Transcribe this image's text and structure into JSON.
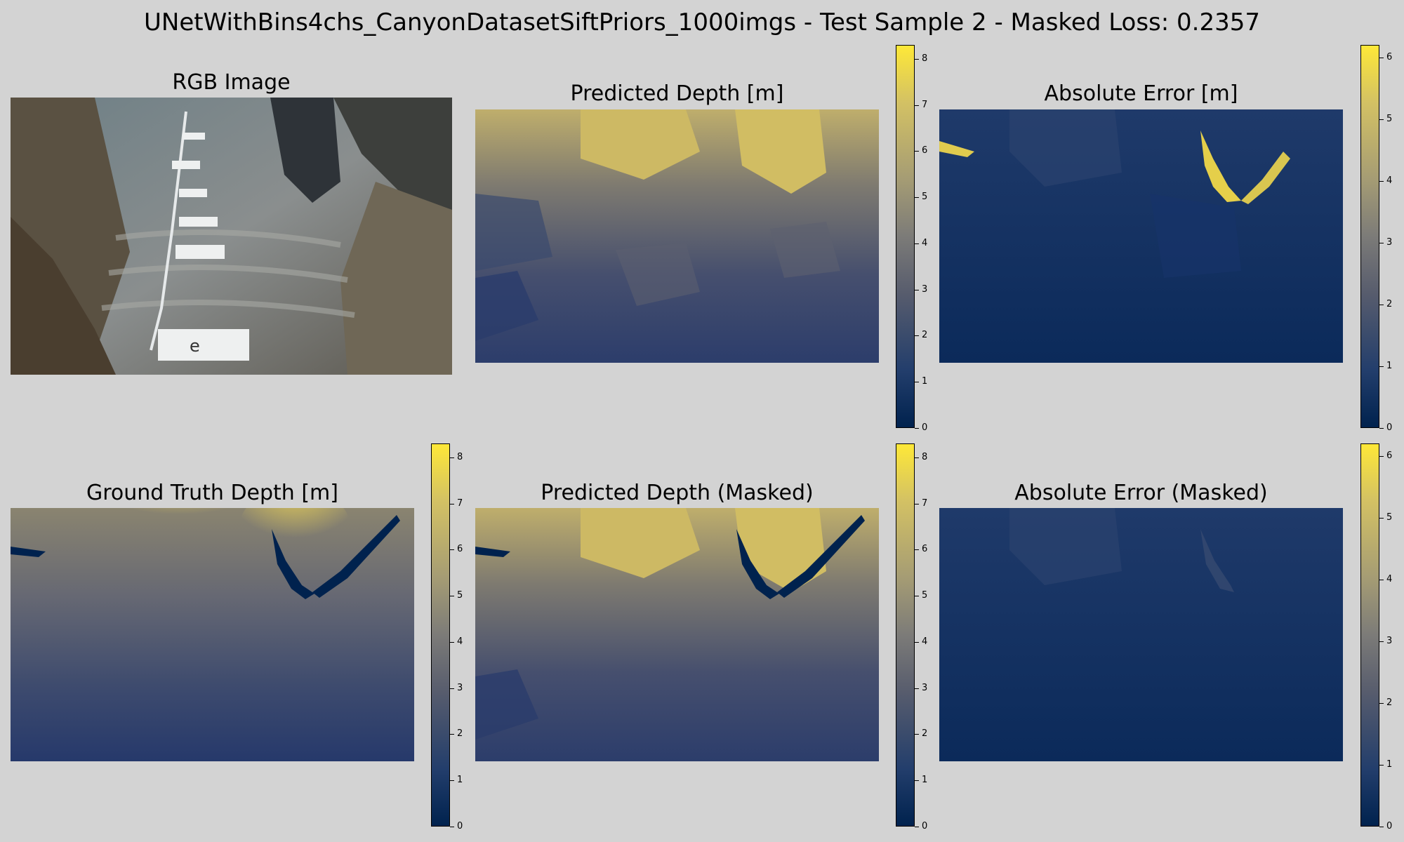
{
  "figure": {
    "title": "UNetWithBins4chs_CanyonDatasetSiftPriors_1000imgs - Test Sample 2 - Masked Loss: 0.2357"
  },
  "colors": {
    "background": "#d3d3d3",
    "colormap": "cividis",
    "colormap_low": "#00224e",
    "colormap_high": "#fee838"
  },
  "panels": [
    {
      "title": "RGB Image"
    },
    {
      "title": "Predicted Depth [m]"
    },
    {
      "title": "Absolute Error [m]"
    },
    {
      "title": "Ground Truth Depth [m]"
    },
    {
      "title": "Predicted Depth (Masked)"
    },
    {
      "title": "Absolute Error (Masked)"
    }
  ],
  "chart_data": [
    {
      "type": "heatmap",
      "title": "Predicted Depth [m]",
      "colormap": "cividis",
      "vmin": 0,
      "vmax": 8.3,
      "colorbar_ticks": [
        "0",
        "1",
        "2",
        "3",
        "4",
        "5",
        "6",
        "7",
        "8"
      ]
    },
    {
      "type": "heatmap",
      "title": "Absolute Error [m]",
      "colormap": "cividis",
      "vmin": 0,
      "vmax": 6.2,
      "colorbar_ticks": [
        "0",
        "1",
        "2",
        "3",
        "4",
        "5",
        "6"
      ]
    },
    {
      "type": "heatmap",
      "title": "Ground Truth Depth [m]",
      "colormap": "cividis",
      "vmin": 0,
      "vmax": 8.3,
      "colorbar_ticks": [
        "0",
        "1",
        "2",
        "3",
        "4",
        "5",
        "6",
        "7",
        "8"
      ]
    },
    {
      "type": "heatmap",
      "title": "Predicted Depth (Masked)",
      "colormap": "cividis",
      "vmin": 0,
      "vmax": 8.3,
      "colorbar_ticks": [
        "0",
        "1",
        "2",
        "3",
        "4",
        "5",
        "6",
        "7",
        "8"
      ]
    },
    {
      "type": "heatmap",
      "title": "Absolute Error (Masked)",
      "colormap": "cividis",
      "vmin": 0,
      "vmax": 6.2,
      "colorbar_ticks": [
        "0",
        "1",
        "2",
        "3",
        "4",
        "5",
        "6"
      ]
    }
  ]
}
